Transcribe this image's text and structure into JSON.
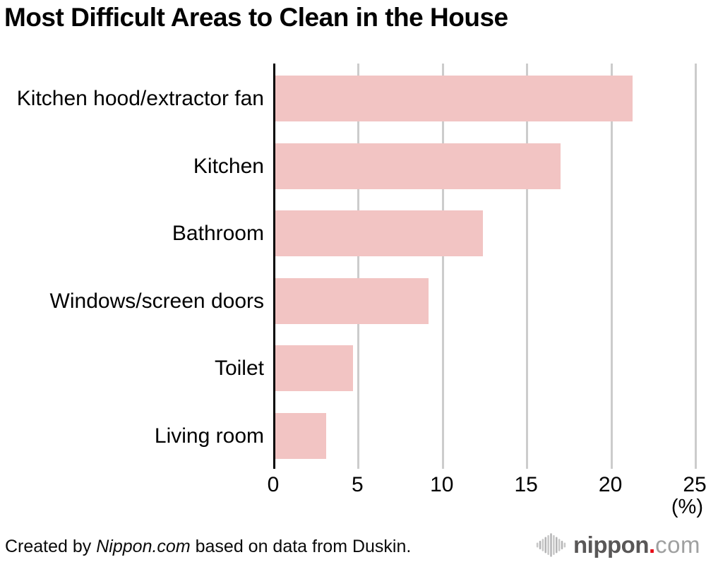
{
  "chart_data": {
    "type": "bar",
    "orientation": "horizontal",
    "title": "Most Difficult Areas to Clean in the House",
    "categories": [
      "Kitchen hood/extractor fan",
      "Kitchen",
      "Bathroom",
      "Windows/screen doors",
      "Toilet",
      "Living room"
    ],
    "values": [
      21.2,
      16.9,
      12.3,
      9.1,
      4.6,
      3.0
    ],
    "xlabel": "(%)",
    "xlim": [
      0,
      25
    ],
    "xticks": [
      0,
      5,
      10,
      15,
      20,
      25
    ],
    "grid": true,
    "legend": "none",
    "bar_color": "#f2c4c3",
    "gridline_color": "#cccccc",
    "axis_color": "#000000",
    "text_color": "#000000"
  },
  "footer": {
    "credit_prefix": "Created by ",
    "credit_source": "Nippon.com",
    "credit_suffix": " based on data from Duskin."
  },
  "logo": {
    "icon": "soundwave-bars-icon",
    "name": "nippon",
    "dot": ".",
    "tld": "com",
    "name_color": "#595757",
    "dot_color": "#e60012",
    "tld_color": "#9fa0a0",
    "icon_color": "#b5b5b6"
  }
}
